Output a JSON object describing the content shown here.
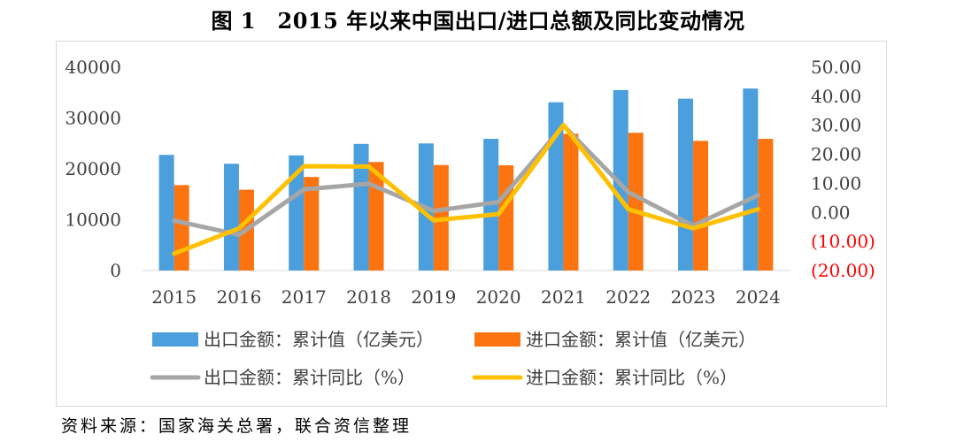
{
  "figure_title": "图 1　2015 年以来中国出口/进口总额及同比变动情况",
  "source_note": "资料来源：国家海关总署，联合资信整理",
  "colors": {
    "export_bar": "#4a9fdc",
    "import_bar": "#fb7410",
    "export_line": "#a6a6a6",
    "import_line": "#ffc000",
    "negative_tick": "#ff0000",
    "axis_text": "#404040",
    "grid": "#d9d9d9"
  },
  "chart_data": {
    "type": "bar",
    "categories": [
      "2015",
      "2016",
      "2017",
      "2018",
      "2019",
      "2020",
      "2021",
      "2022",
      "2023",
      "2024"
    ],
    "series": [
      {
        "name": "出口金额：累计值（亿美元）",
        "kind": "bar",
        "axis": "left",
        "values": [
          22750,
          21000,
          22650,
          24900,
          25000,
          25900,
          33100,
          35500,
          33800,
          35800
        ]
      },
      {
        "name": "进口金额：累计值（亿美元）",
        "kind": "bar",
        "axis": "left",
        "values": [
          16800,
          15900,
          18400,
          21350,
          20750,
          20700,
          26900,
          27100,
          25500,
          25900
        ]
      },
      {
        "name": "出口金额：累计同比（%）",
        "kind": "line",
        "axis": "right",
        "values": [
          -2.8,
          -7.7,
          7.9,
          9.9,
          0.5,
          3.6,
          29.9,
          7.0,
          -4.6,
          5.9
        ]
      },
      {
        "name": "进口金额：累计同比（%）",
        "kind": "line",
        "axis": "right",
        "values": [
          -14.2,
          -5.5,
          15.9,
          15.8,
          -2.7,
          -0.6,
          30.1,
          1.1,
          -5.5,
          1.1
        ]
      }
    ],
    "y_left": {
      "min": 0,
      "max": 40000,
      "ticks": [
        0,
        10000,
        20000,
        30000,
        40000
      ],
      "tick_labels": [
        "0",
        "10000",
        "20000",
        "30000",
        "40000"
      ]
    },
    "y_right": {
      "min": -20,
      "max": 50,
      "ticks": [
        -20,
        -10,
        0,
        10,
        20,
        30,
        40,
        50
      ],
      "tick_labels": [
        "(20.00)",
        "(10.00)",
        "0.00",
        "10.00",
        "20.00",
        "30.00",
        "40.00",
        "50.00"
      ]
    },
    "grid": false,
    "legend": "bottom"
  }
}
